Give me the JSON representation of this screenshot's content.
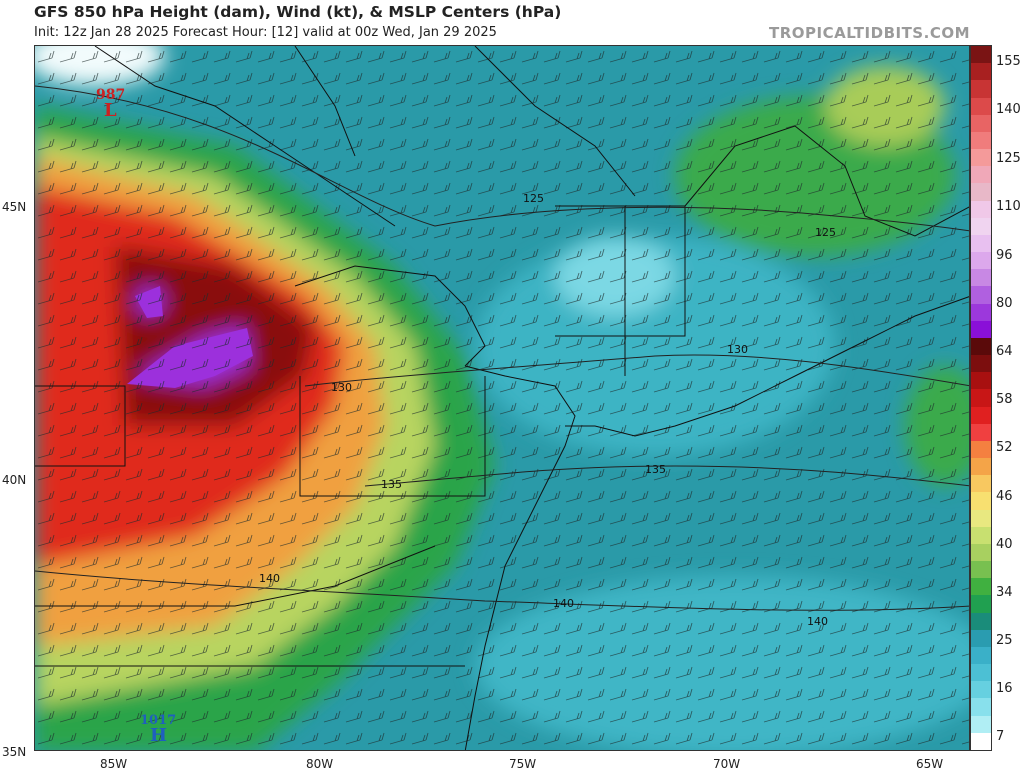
{
  "header": {
    "title": "GFS 850 hPa Height (dam), Wind (kt), & MSLP Centers (hPa)",
    "subtitle": "Init: 12z Jan 28 2025   Forecast Hour: [12]   valid at 00z Wed, Jan 29 2025",
    "watermark": "TROPICALTIDBITS.COM"
  },
  "axes": {
    "lat_labels": [
      "45N",
      "40N",
      "35N"
    ],
    "lon_labels": [
      "85W",
      "80W",
      "75W",
      "70W",
      "65W"
    ]
  },
  "contours": {
    "labels": [
      "125",
      "130",
      "130",
      "135",
      "135",
      "140",
      "140",
      "140",
      "125"
    ]
  },
  "pressure_centers": {
    "low": {
      "value": "987",
      "letter": "L",
      "color": "#cc2222"
    },
    "high": {
      "value": "1017",
      "letter": "H",
      "color": "#1f5fbf"
    }
  },
  "colorbar": {
    "labels": [
      "155",
      "140",
      "125",
      "110",
      "96",
      "80",
      "64",
      "58",
      "52",
      "46",
      "40",
      "34",
      "25",
      "16",
      "7"
    ],
    "colors": [
      "#7a1414",
      "#a82020",
      "#c83434",
      "#dc4a4a",
      "#e86464",
      "#f07c7c",
      "#f49a9a",
      "#f0a8b8",
      "#e8b8c8",
      "#f0c8e8",
      "#f0d4f0",
      "#e8c0f0",
      "#dca8ec",
      "#c888e4",
      "#b060e0",
      "#9c38dc",
      "#8a10d8",
      "#5a0a0a",
      "#7c0e0e",
      "#a81010",
      "#c81616",
      "#e02020",
      "#f04040",
      "#f48040",
      "#f4a448",
      "#f8c860",
      "#f8e070",
      "#e8e880",
      "#c8e070",
      "#a8d060",
      "#78c050",
      "#40b040",
      "#20a050",
      "#1a8c7a",
      "#2a9cb0",
      "#3ab0c8",
      "#4cc0d4",
      "#66d0e0",
      "#88e0ec",
      "#b0eef4",
      "#ffffff"
    ]
  }
}
